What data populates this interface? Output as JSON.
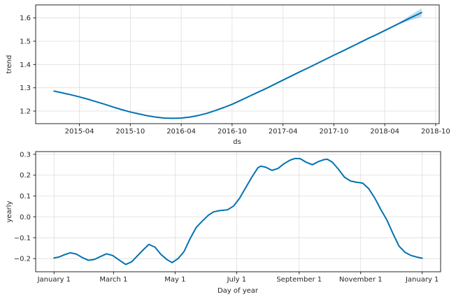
{
  "figure": {
    "background": "#ffffff",
    "line_color": "#0072b2",
    "band_alpha": 0.25,
    "grid_color": "#dedede",
    "frame_color": "#262626",
    "text_color": "#262626"
  },
  "chart_data": [
    {
      "type": "line",
      "title": "",
      "xlabel": "ds",
      "ylabel": "trend",
      "grid": true,
      "legend": "none",
      "x_unit": "months since 2015-01",
      "xlim": [
        -2.16,
        45.42
      ],
      "ylim": [
        1.146,
        1.656
      ],
      "x_ticks": [
        {
          "label": "2015-04",
          "v": 3
        },
        {
          "label": "2015-10",
          "v": 9
        },
        {
          "label": "2016-04",
          "v": 15
        },
        {
          "label": "2016-10",
          "v": 21
        },
        {
          "label": "2017-04",
          "v": 27
        },
        {
          "label": "2017-10",
          "v": 33
        },
        {
          "label": "2018-04",
          "v": 39
        },
        {
          "label": "2018-10",
          "v": 45
        }
      ],
      "y_ticks": [
        {
          "label": "1.2",
          "v": 1.2
        },
        {
          "label": "1.3",
          "v": 1.3
        },
        {
          "label": "1.4",
          "v": 1.4
        },
        {
          "label": "1.5",
          "v": 1.5
        },
        {
          "label": "1.6",
          "v": 1.6
        }
      ],
      "series": [
        {
          "name": "trend",
          "x": [
            0,
            1,
            2,
            3,
            4,
            5,
            6,
            7,
            8,
            9,
            10,
            11,
            12,
            13,
            14,
            15,
            16,
            17,
            18,
            19,
            20,
            21,
            22,
            23,
            24,
            25,
            26,
            27,
            28,
            29,
            30,
            31,
            32,
            33,
            34,
            35,
            36,
            37,
            38,
            39,
            40,
            41,
            42,
            43,
            43.34
          ],
          "y": [
            1.286,
            1.278,
            1.27,
            1.261,
            1.251,
            1.24,
            1.229,
            1.217,
            1.206,
            1.196,
            1.188,
            1.18,
            1.174,
            1.17,
            1.169,
            1.17,
            1.174,
            1.181,
            1.19,
            1.202,
            1.215,
            1.229,
            1.246,
            1.263,
            1.28,
            1.297,
            1.315,
            1.333,
            1.351,
            1.369,
            1.386,
            1.404,
            1.422,
            1.44,
            1.457,
            1.475,
            1.493,
            1.511,
            1.528,
            1.546,
            1.564,
            1.582,
            1.6,
            1.617,
            1.623
          ]
        }
      ],
      "band": {
        "name": "trend-uncertainty",
        "x": [
          40,
          41,
          42,
          43,
          43.34
        ],
        "lo": [
          1.564,
          1.577,
          1.589,
          1.601,
          1.605
        ],
        "hi": [
          1.564,
          1.587,
          1.611,
          1.634,
          1.641
        ]
      }
    },
    {
      "type": "line",
      "title": "",
      "xlabel": "Day of year",
      "ylabel": "yearly",
      "grid": true,
      "legend": "none",
      "x_unit": "day of year",
      "xlim": [
        -18.25,
        383.25
      ],
      "ylim": [
        -0.263,
        0.313
      ],
      "x_ticks": [
        {
          "label": "January 1",
          "v": 0
        },
        {
          "label": "March 1",
          "v": 59
        },
        {
          "label": "May 1",
          "v": 120
        },
        {
          "label": "July 1",
          "v": 181
        },
        {
          "label": "September 1",
          "v": 243
        },
        {
          "label": "November 1",
          "v": 304
        },
        {
          "label": "January 1",
          "v": 365
        }
      ],
      "y_ticks": [
        {
          "label": "−0.2",
          "v": -0.2
        },
        {
          "label": "−0.1",
          "v": -0.1
        },
        {
          "label": "0.0",
          "v": 0.0
        },
        {
          "label": "0.1",
          "v": 0.1
        },
        {
          "label": "0.2",
          "v": 0.2
        },
        {
          "label": "0.3",
          "v": 0.3
        }
      ],
      "series": [
        {
          "name": "yearly",
          "x": [
            0,
            5,
            10,
            16,
            22,
            28,
            34,
            40,
            46,
            52,
            58,
            64,
            71,
            77,
            83,
            89,
            94,
            100,
            106,
            112,
            117,
            123,
            129,
            135,
            141,
            147,
            153,
            158,
            164,
            172,
            178,
            184,
            190,
            196,
            202,
            205,
            210,
            216,
            222,
            228,
            234,
            239,
            244,
            250,
            256,
            262,
            268,
            271,
            276,
            282,
            288,
            294,
            300,
            306,
            312,
            318,
            324,
            330,
            336,
            342,
            348,
            354,
            360,
            365
          ],
          "y": [
            -0.197,
            -0.192,
            -0.182,
            -0.172,
            -0.178,
            -0.195,
            -0.208,
            -0.204,
            -0.19,
            -0.177,
            -0.185,
            -0.205,
            -0.228,
            -0.215,
            -0.185,
            -0.155,
            -0.132,
            -0.145,
            -0.18,
            -0.205,
            -0.219,
            -0.2,
            -0.165,
            -0.103,
            -0.05,
            -0.02,
            0.008,
            0.024,
            0.03,
            0.034,
            0.052,
            0.09,
            0.14,
            0.19,
            0.235,
            0.243,
            0.238,
            0.223,
            0.232,
            0.255,
            0.272,
            0.28,
            0.279,
            0.262,
            0.25,
            0.265,
            0.275,
            0.276,
            0.262,
            0.228,
            0.19,
            0.172,
            0.166,
            0.162,
            0.135,
            0.09,
            0.035,
            -0.015,
            -0.08,
            -0.14,
            -0.17,
            -0.185,
            -0.193,
            -0.198
          ]
        }
      ]
    }
  ]
}
